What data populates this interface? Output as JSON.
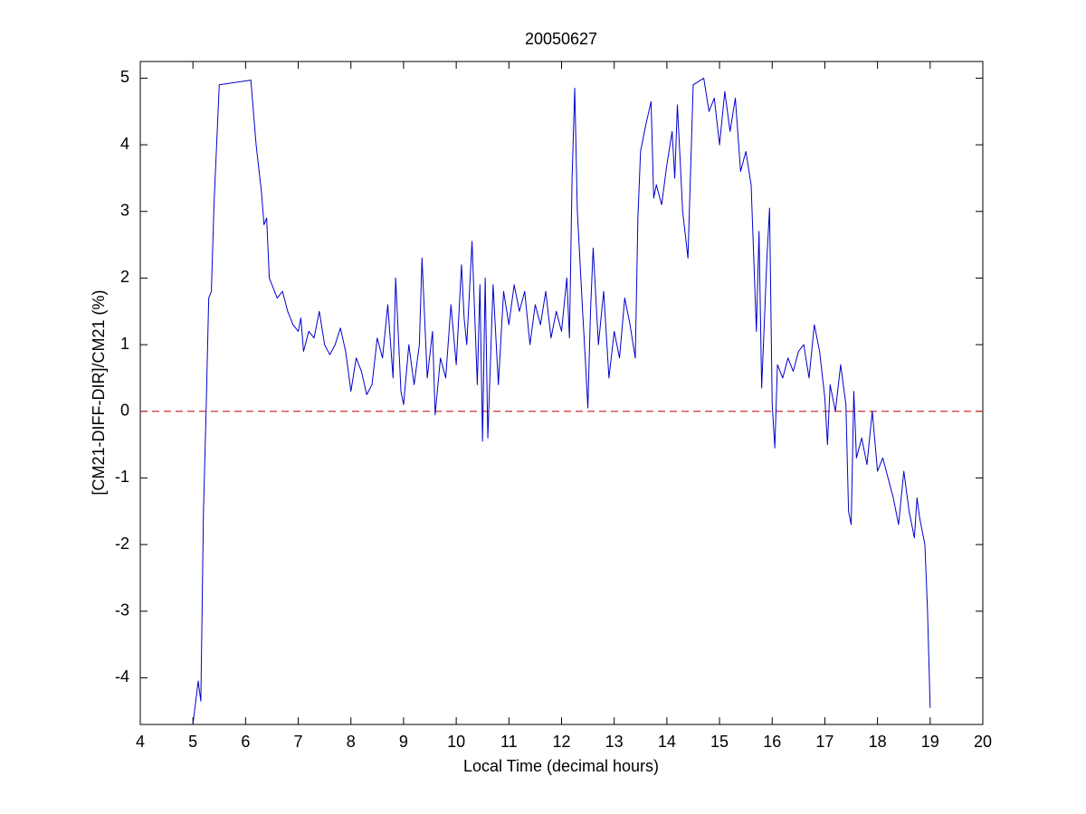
{
  "chart_data": {
    "type": "line",
    "title": "20050627",
    "xlabel": "Local Time (decimal hours)",
    "ylabel": "[CM21-DIFF-DIR]/CM21 (%)",
    "xlim": [
      4,
      20
    ],
    "xticks": [
      4,
      5,
      6,
      7,
      8,
      9,
      10,
      11,
      12,
      13,
      14,
      15,
      16,
      17,
      18,
      19,
      20
    ],
    "ylim": [
      -4.7,
      5.25
    ],
    "yticks": [
      -4,
      -3,
      -2,
      -1,
      0,
      1,
      2,
      3,
      4,
      5
    ],
    "grid": false,
    "reference_line": {
      "value": 0,
      "color": "#cc3333",
      "style": "dashed"
    },
    "x": [
      5.0,
      5.1,
      5.15,
      5.2,
      5.25,
      5.3,
      5.35,
      5.4,
      5.5,
      6.1,
      6.2,
      6.3,
      6.35,
      6.4,
      6.45,
      6.5,
      6.6,
      6.7,
      6.8,
      6.9,
      7.0,
      7.05,
      7.1,
      7.2,
      7.3,
      7.4,
      7.5,
      7.6,
      7.7,
      7.8,
      7.9,
      8.0,
      8.1,
      8.2,
      8.3,
      8.4,
      8.5,
      8.6,
      8.7,
      8.8,
      8.85,
      8.95,
      9.0,
      9.1,
      9.2,
      9.3,
      9.35,
      9.45,
      9.55,
      9.6,
      9.7,
      9.8,
      9.9,
      10.0,
      10.1,
      10.15,
      10.2,
      10.3,
      10.4,
      10.45,
      10.5,
      10.55,
      10.6,
      10.7,
      10.8,
      10.9,
      11.0,
      11.1,
      11.2,
      11.3,
      11.4,
      11.5,
      11.6,
      11.7,
      11.8,
      11.9,
      12.0,
      12.1,
      12.15,
      12.2,
      12.25,
      12.3,
      12.4,
      12.45,
      12.5,
      12.55,
      12.6,
      12.7,
      12.8,
      12.9,
      13.0,
      13.1,
      13.2,
      13.3,
      13.4,
      13.45,
      13.5,
      13.6,
      13.7,
      13.75,
      13.8,
      13.9,
      14.0,
      14.1,
      14.15,
      14.2,
      14.3,
      14.4,
      14.5,
      14.7,
      14.8,
      14.9,
      15.0,
      15.1,
      15.2,
      15.3,
      15.4,
      15.5,
      15.6,
      15.7,
      15.75,
      15.8,
      15.9,
      15.95,
      16.0,
      16.05,
      16.1,
      16.2,
      16.3,
      16.4,
      16.5,
      16.6,
      16.7,
      16.8,
      16.9,
      17.0,
      17.05,
      17.1,
      17.2,
      17.3,
      17.4,
      17.45,
      17.5,
      17.55,
      17.6,
      17.7,
      17.8,
      17.9,
      18.0,
      18.1,
      18.2,
      18.3,
      18.4,
      18.5,
      18.6,
      18.7,
      18.75,
      18.8,
      18.9,
      18.95,
      19.0
    ],
    "series": [
      {
        "color": "#0000cc",
        "values": [
          -4.7,
          -4.05,
          -4.35,
          -1.5,
          0,
          1.7,
          1.8,
          3.1,
          4.9,
          4.97,
          4.0,
          3.3,
          2.8,
          2.9,
          2.0,
          1.9,
          1.7,
          1.8,
          1.5,
          1.3,
          1.2,
          1.4,
          0.9,
          1.2,
          1.1,
          1.5,
          1.0,
          0.85,
          1.0,
          1.25,
          0.9,
          0.3,
          0.8,
          0.6,
          0.25,
          0.4,
          1.1,
          0.8,
          1.6,
          0.5,
          2.0,
          0.3,
          0.1,
          1.0,
          0.4,
          1.0,
          2.3,
          0.5,
          1.2,
          -0.05,
          0.8,
          0.5,
          1.6,
          0.7,
          2.2,
          1.4,
          1.0,
          2.55,
          0.4,
          1.9,
          -0.45,
          2.0,
          -0.4,
          1.9,
          0.4,
          1.8,
          1.3,
          1.9,
          1.5,
          1.8,
          1.0,
          1.6,
          1.3,
          1.8,
          1.1,
          1.5,
          1.2,
          2.0,
          1.1,
          3.5,
          4.85,
          3.0,
          1.5,
          0.8,
          0.05,
          1.5,
          2.45,
          1.0,
          1.8,
          0.5,
          1.2,
          0.8,
          1.7,
          1.3,
          0.8,
          2.9,
          3.9,
          4.3,
          4.65,
          3.2,
          3.4,
          3.1,
          3.7,
          4.2,
          3.5,
          4.6,
          3.0,
          2.3,
          4.9,
          5.0,
          4.5,
          4.7,
          4.0,
          4.8,
          4.2,
          4.7,
          3.6,
          3.9,
          3.4,
          1.2,
          2.7,
          0.35,
          2.3,
          3.05,
          0.1,
          -0.55,
          0.7,
          0.5,
          0.8,
          0.6,
          0.9,
          1.0,
          0.5,
          1.3,
          0.9,
          0.2,
          -0.5,
          0.4,
          0.0,
          0.7,
          0.1,
          -1.5,
          -1.7,
          0.3,
          -0.7,
          -0.4,
          -0.8,
          0.0,
          -0.9,
          -0.7,
          -1.0,
          -1.3,
          -1.7,
          -0.9,
          -1.5,
          -1.9,
          -1.3,
          -1.6,
          -2.0,
          -3.0,
          -4.45
        ]
      }
    ]
  }
}
